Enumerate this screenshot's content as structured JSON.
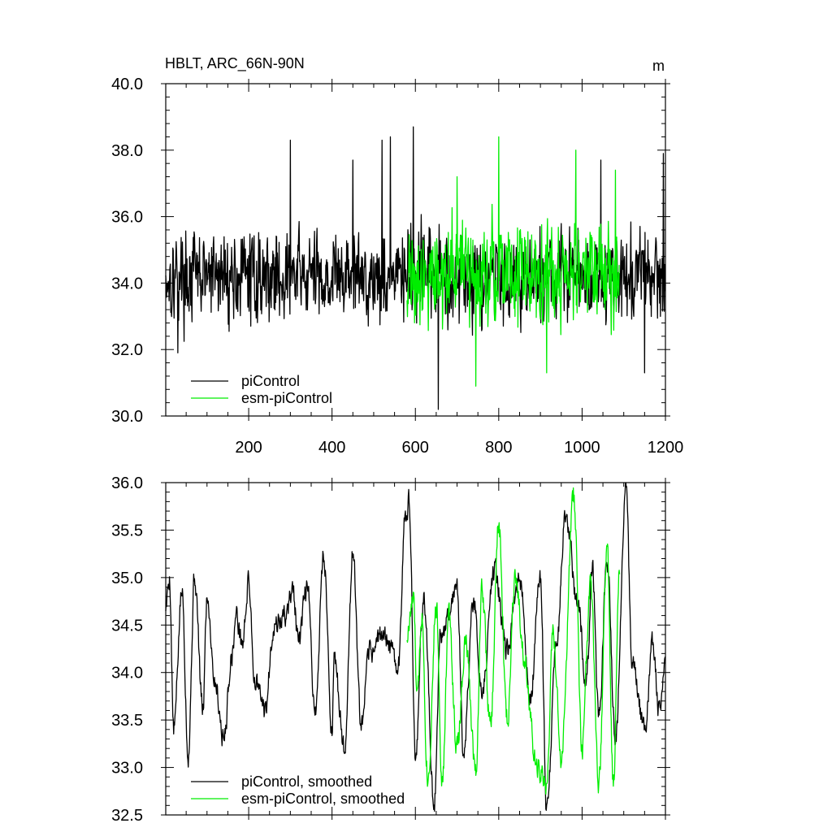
{
  "header": {
    "title": "HBLT, ARC_66N-90N",
    "units": "m"
  },
  "colors": {
    "piControl": "#000000",
    "esm_piControl": "#00ee00",
    "axes": "#000000",
    "background": "#ffffff"
  },
  "chart_data": [
    {
      "type": "line",
      "panel": "top",
      "xlim": [
        1,
        1200
      ],
      "ylim": [
        30.0,
        40.0
      ],
      "x_ticks": [
        200,
        400,
        600,
        800,
        1000,
        1200
      ],
      "x_tick_labels": [
        "200",
        "400",
        "600",
        "800",
        "1000",
        "1200"
      ],
      "y_ticks": [
        30.0,
        32.0,
        34.0,
        36.0,
        38.0,
        40.0
      ],
      "y_tick_labels": [
        "30.0",
        "32.0",
        "34.0",
        "36.0",
        "38.0",
        "40.0"
      ],
      "legend": [
        "piControl",
        "esm-piControl"
      ],
      "legend_position": "bottom-left",
      "series": [
        {
          "name": "piControl",
          "color": "#000000",
          "x_start": 1,
          "x_step": 1,
          "mean": 34.2,
          "amplitude": 1.05,
          "seed": 17,
          "n_points": 1200,
          "peaks": [
            [
              300,
              38.3
            ],
            [
              450,
              37.7
            ],
            [
              520,
              38.3
            ],
            [
              540,
              38.4
            ],
            [
              595,
              38.7
            ],
            [
              655,
              30.2
            ],
            [
              1045,
              37.7
            ],
            [
              1150,
              31.3
            ],
            [
              1195,
              37.9
            ],
            [
              30,
              31.9
            ]
          ]
        },
        {
          "name": "esm-piControl",
          "color": "#00ee00",
          "x_start": 580,
          "x_step": 1,
          "mean": 34.3,
          "amplitude": 1.2,
          "seed": 91,
          "n_points": 510,
          "peaks": [
            [
              745,
              30.9
            ],
            [
              800,
              38.4
            ],
            [
              985,
              38.0
            ],
            [
              915,
              31.3
            ],
            [
              1080,
              37.4
            ],
            [
              700,
              37.2
            ]
          ]
        }
      ]
    },
    {
      "type": "line",
      "panel": "bottom",
      "xlim": [
        1,
        1200
      ],
      "ylim": [
        32.5,
        36.0
      ],
      "x_ticks": [
        200,
        400,
        600,
        800,
        1000,
        1200
      ],
      "y_ticks": [
        32.5,
        33.0,
        33.5,
        34.0,
        34.5,
        35.0,
        35.5,
        36.0
      ],
      "y_tick_labels": [
        "32.5",
        "33.0",
        "33.5",
        "34.0",
        "34.5",
        "35.0",
        "35.5",
        "36.0"
      ],
      "legend": [
        "piControl, smoothed",
        "esm-piControl, smoothed"
      ],
      "legend_position": "bottom-left",
      "series": [
        {
          "name": "piControl, smoothed",
          "color": "#000000",
          "x_start": 1,
          "x_step": 1,
          "x_end": 1200,
          "keypoints": [
            [
              1,
              34.7
            ],
            [
              10,
              35.0
            ],
            [
              20,
              33.4
            ],
            [
              40,
              34.85
            ],
            [
              55,
              33.15
            ],
            [
              70,
              35.0
            ],
            [
              90,
              33.6
            ],
            [
              100,
              34.8
            ],
            [
              120,
              33.9
            ],
            [
              140,
              33.3
            ],
            [
              160,
              34.2
            ],
            [
              170,
              34.6
            ],
            [
              185,
              34.3
            ],
            [
              200,
              34.95
            ],
            [
              215,
              33.9
            ],
            [
              240,
              33.6
            ],
            [
              260,
              34.5
            ],
            [
              290,
              34.6
            ],
            [
              305,
              34.9
            ],
            [
              320,
              34.3
            ],
            [
              340,
              34.9
            ],
            [
              360,
              33.6
            ],
            [
              380,
              35.25
            ],
            [
              400,
              33.4
            ],
            [
              405,
              34.1
            ],
            [
              430,
              33.2
            ],
            [
              450,
              35.25
            ],
            [
              470,
              33.4
            ],
            [
              490,
              34.2
            ],
            [
              520,
              34.4
            ],
            [
              560,
              34.1
            ],
            [
              575,
              35.7
            ],
            [
              585,
              35.8
            ],
            [
              600,
              33.1
            ],
            [
              620,
              34.8
            ],
            [
              645,
              32.6
            ],
            [
              660,
              34.4
            ],
            [
              700,
              34.9
            ],
            [
              715,
              33.2
            ],
            [
              740,
              34.75
            ],
            [
              760,
              33.8
            ],
            [
              790,
              35.1
            ],
            [
              820,
              34.2
            ],
            [
              850,
              35.0
            ],
            [
              875,
              33.7
            ],
            [
              900,
              35.0
            ],
            [
              915,
              32.55
            ],
            [
              940,
              34.4
            ],
            [
              960,
              35.65
            ],
            [
              990,
              34.7
            ],
            [
              1010,
              33.9
            ],
            [
              1025,
              35.1
            ],
            [
              1040,
              33.5
            ],
            [
              1060,
              35.2
            ],
            [
              1080,
              33.3
            ],
            [
              1105,
              35.95
            ],
            [
              1120,
              34.1
            ],
            [
              1150,
              33.4
            ],
            [
              1170,
              34.3
            ],
            [
              1185,
              33.6
            ],
            [
              1200,
              34.2
            ]
          ],
          "noise": 0.22,
          "seed": 5
        },
        {
          "name": "esm-piControl, smoothed",
          "color": "#00ee00",
          "x_start": 580,
          "x_step": 1,
          "x_end": 1090,
          "keypoints": [
            [
              580,
              34.4
            ],
            [
              595,
              34.75
            ],
            [
              605,
              33.7
            ],
            [
              615,
              34.65
            ],
            [
              630,
              32.9
            ],
            [
              650,
              34.7
            ],
            [
              665,
              32.85
            ],
            [
              680,
              34.6
            ],
            [
              700,
              33.2
            ],
            [
              720,
              34.3
            ],
            [
              745,
              33.0
            ],
            [
              760,
              34.9
            ],
            [
              780,
              33.4
            ],
            [
              800,
              35.55
            ],
            [
              820,
              33.5
            ],
            [
              840,
              35.1
            ],
            [
              860,
              34.2
            ],
            [
              890,
              33.0
            ],
            [
              915,
              32.8
            ],
            [
              930,
              34.4
            ],
            [
              950,
              33.1
            ],
            [
              980,
              35.85
            ],
            [
              1000,
              33.2
            ],
            [
              1020,
              34.9
            ],
            [
              1040,
              32.8
            ],
            [
              1060,
              35.3
            ],
            [
              1075,
              32.8
            ],
            [
              1090,
              35.2
            ]
          ],
          "noise": 0.26,
          "seed": 33
        }
      ]
    }
  ]
}
